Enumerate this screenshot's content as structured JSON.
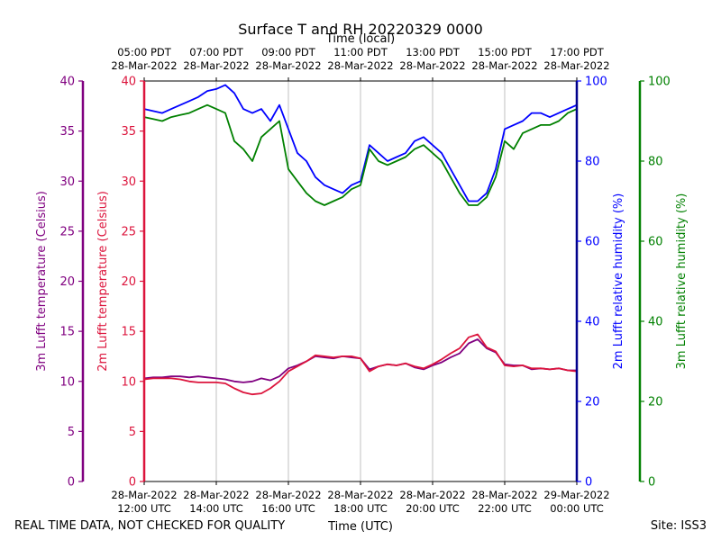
{
  "chart_data": {
    "type": "line",
    "title": "Surface T and RH 20220329 0000",
    "top_axis_label": "Time (local)",
    "xlabel": "Time (UTC)",
    "footer_left": "REAL TIME DATA, NOT CHECKED FOR QUALITY",
    "footer_right": "Site: ISS3",
    "grid": "vertical",
    "x_range_hours": [
      12,
      24
    ],
    "x_ticks": [
      {
        "hour": 12,
        "utc_date": "28-Mar-2022",
        "utc_time": "12:00 UTC",
        "local_time": "05:00 PDT",
        "local_date": "28-Mar-2022"
      },
      {
        "hour": 14,
        "utc_date": "28-Mar-2022",
        "utc_time": "14:00 UTC",
        "local_time": "07:00 PDT",
        "local_date": "28-Mar-2022"
      },
      {
        "hour": 16,
        "utc_date": "28-Mar-2022",
        "utc_time": "16:00 UTC",
        "local_time": "09:00 PDT",
        "local_date": "28-Mar-2022"
      },
      {
        "hour": 18,
        "utc_date": "28-Mar-2022",
        "utc_time": "18:00 UTC",
        "local_time": "11:00 PDT",
        "local_date": "28-Mar-2022"
      },
      {
        "hour": 20,
        "utc_date": "28-Mar-2022",
        "utc_time": "20:00 UTC",
        "local_time": "13:00 PDT",
        "local_date": "28-Mar-2022"
      },
      {
        "hour": 22,
        "utc_date": "28-Mar-2022",
        "utc_time": "22:00 UTC",
        "local_time": "15:00 PDT",
        "local_date": "28-Mar-2022"
      },
      {
        "hour": 24,
        "utc_date": "29-Mar-2022",
        "utc_time": "00:00 UTC",
        "local_time": "17:00 PDT",
        "local_date": "28-Mar-2022"
      }
    ],
    "axes": {
      "t3m": {
        "label": "3m Lufft temperature (Celsius)",
        "range": [
          0,
          40
        ],
        "ticks": [
          0,
          5,
          10,
          15,
          20,
          25,
          30,
          35,
          40
        ],
        "color": "#800080"
      },
      "t2m": {
        "label": "2m Lufft temperature (Celsius)",
        "range": [
          0,
          40
        ],
        "ticks": [
          0,
          5,
          10,
          15,
          20,
          25,
          30,
          35,
          40
        ],
        "color": "#dc143c"
      },
      "rh2m": {
        "label": "2m Lufft relative humidity (%)",
        "range": [
          0,
          100
        ],
        "ticks": [
          0,
          20,
          40,
          60,
          80,
          100
        ],
        "color": "#0000ff"
      },
      "rh3m": {
        "label": "3m Lufft relative humidity (%)",
        "range": [
          0,
          100
        ],
        "ticks": [
          0,
          20,
          40,
          60,
          80,
          100
        ],
        "color": "#008000"
      }
    },
    "series": [
      {
        "key": "rh2m",
        "color": "#0000ff",
        "x": [
          12,
          12.25,
          12.5,
          12.75,
          13,
          13.25,
          13.5,
          13.75,
          14,
          14.25,
          14.5,
          14.75,
          15,
          15.25,
          15.5,
          15.75,
          16,
          16.25,
          16.5,
          16.75,
          17,
          17.25,
          17.5,
          17.75,
          18,
          18.25,
          18.5,
          18.75,
          19,
          19.25,
          19.5,
          19.75,
          20,
          20.25,
          20.5,
          20.75,
          21,
          21.25,
          21.5,
          21.75,
          22,
          22.25,
          22.5,
          22.75,
          23,
          23.25,
          23.5,
          23.75,
          24
        ],
        "y": [
          93,
          92.5,
          92,
          93,
          94,
          95,
          96,
          97.5,
          98,
          99,
          97,
          93,
          92,
          93,
          90,
          94,
          88,
          82,
          80,
          76,
          74,
          73,
          72,
          74,
          75,
          84,
          82,
          80,
          81,
          82,
          85,
          86,
          84,
          82,
          78,
          74,
          70,
          70,
          72,
          78,
          88,
          89,
          90,
          92,
          92,
          91,
          92,
          93,
          94
        ]
      },
      {
        "key": "rh3m",
        "color": "#008000",
        "x": [
          12,
          12.25,
          12.5,
          12.75,
          13,
          13.25,
          13.5,
          13.75,
          14,
          14.25,
          14.5,
          14.75,
          15,
          15.25,
          15.5,
          15.75,
          16,
          16.25,
          16.5,
          16.75,
          17,
          17.25,
          17.5,
          17.75,
          18,
          18.25,
          18.5,
          18.75,
          19,
          19.25,
          19.5,
          19.75,
          20,
          20.25,
          20.5,
          20.75,
          21,
          21.25,
          21.5,
          21.75,
          22,
          22.25,
          22.5,
          22.75,
          23,
          23.25,
          23.5,
          23.75,
          24
        ],
        "y": [
          91,
          90.5,
          90,
          91,
          91.5,
          92,
          93,
          94,
          93,
          92,
          85,
          83,
          80,
          86,
          88,
          90,
          78,
          75,
          72,
          70,
          69,
          70,
          71,
          73,
          74,
          83,
          80,
          79,
          80,
          81,
          83,
          84,
          82,
          80,
          76,
          72,
          69,
          69,
          71,
          76,
          85,
          83,
          87,
          88,
          89,
          89,
          90,
          92,
          93
        ]
      },
      {
        "key": "t3m",
        "color": "#800080",
        "x": [
          12,
          12.25,
          12.5,
          12.75,
          13,
          13.25,
          13.5,
          13.75,
          14,
          14.25,
          14.5,
          14.75,
          15,
          15.25,
          15.5,
          15.75,
          16,
          16.25,
          16.5,
          16.75,
          17,
          17.25,
          17.5,
          17.75,
          18,
          18.25,
          18.5,
          18.75,
          19,
          19.25,
          19.5,
          19.75,
          20,
          20.25,
          20.5,
          20.75,
          21,
          21.25,
          21.5,
          21.75,
          22,
          22.25,
          22.5,
          22.75,
          23,
          23.25,
          23.5,
          23.75,
          24
        ],
        "y": [
          10.3,
          10.4,
          10.4,
          10.5,
          10.5,
          10.4,
          10.5,
          10.4,
          10.3,
          10.2,
          10.0,
          9.9,
          10.0,
          10.3,
          10.1,
          10.5,
          11.3,
          11.6,
          12.0,
          12.5,
          12.4,
          12.3,
          12.5,
          12.4,
          12.3,
          11.2,
          11.5,
          11.7,
          11.6,
          11.8,
          11.4,
          11.2,
          11.6,
          11.9,
          12.4,
          12.8,
          13.8,
          14.2,
          13.3,
          12.9,
          11.7,
          11.6,
          11.6,
          11.2,
          11.3,
          11.2,
          11.3,
          11.1,
          11.1
        ]
      },
      {
        "key": "t2m",
        "color": "#dc143c",
        "x": [
          12,
          12.25,
          12.5,
          12.75,
          13,
          13.25,
          13.5,
          13.75,
          14,
          14.25,
          14.5,
          14.75,
          15,
          15.25,
          15.5,
          15.75,
          16,
          16.25,
          16.5,
          16.75,
          17,
          17.25,
          17.5,
          17.75,
          18,
          18.25,
          18.5,
          18.75,
          19,
          19.25,
          19.5,
          19.75,
          20,
          20.25,
          20.5,
          20.75,
          21,
          21.25,
          21.5,
          21.75,
          22,
          22.25,
          22.5,
          22.75,
          23,
          23.25,
          23.5,
          23.75,
          24
        ],
        "y": [
          10.2,
          10.3,
          10.3,
          10.3,
          10.2,
          10.0,
          9.9,
          9.9,
          9.9,
          9.8,
          9.3,
          8.9,
          8.7,
          8.8,
          9.3,
          10.0,
          11.0,
          11.5,
          12.0,
          12.6,
          12.5,
          12.4,
          12.5,
          12.5,
          12.3,
          11.0,
          11.5,
          11.7,
          11.6,
          11.8,
          11.5,
          11.3,
          11.7,
          12.2,
          12.8,
          13.3,
          14.4,
          14.7,
          13.4,
          13.0,
          11.6,
          11.5,
          11.6,
          11.3,
          11.3,
          11.2,
          11.3,
          11.1,
          11.0
        ]
      }
    ]
  }
}
